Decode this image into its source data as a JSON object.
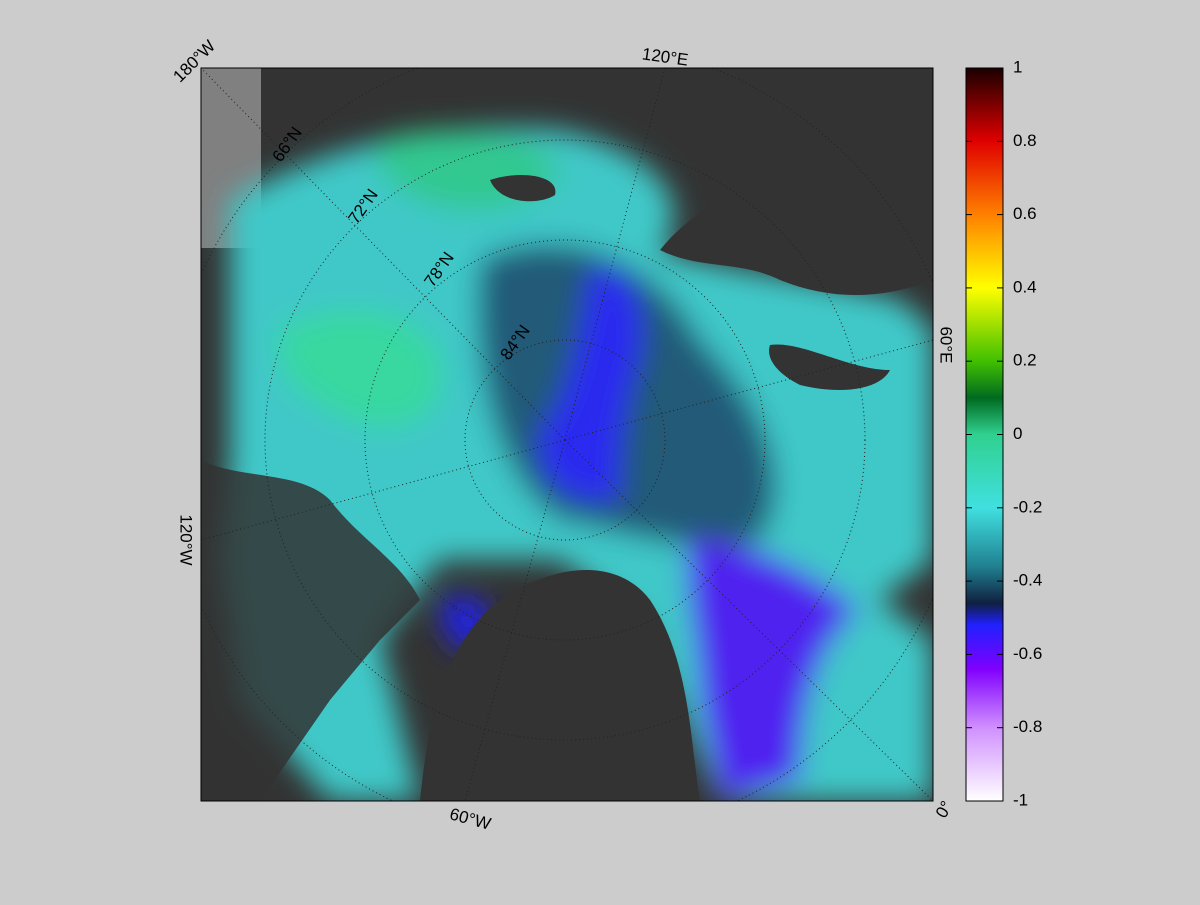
{
  "map": {
    "longitude_labels": [
      "180°W",
      "120°E",
      "60°E",
      "0°",
      "60°W",
      "120°W"
    ],
    "latitude_labels": [
      "66°N",
      "72°N",
      "78°N",
      "84°N"
    ]
  },
  "colorbar": {
    "lim": [
      -1,
      1
    ],
    "ticks": [
      1,
      0.8,
      0.6,
      0.4,
      0.2,
      0,
      -0.2,
      -0.4,
      -0.6,
      -0.8,
      -1
    ]
  }
}
